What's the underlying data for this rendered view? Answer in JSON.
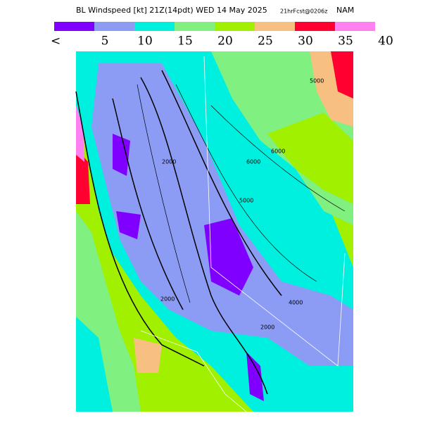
{
  "header": {
    "title": "BL Windspeed [kt] 21Z(14pdt) WED 14 May 2025",
    "forecast": "21hrFcst@0206z",
    "model": "NAM"
  },
  "legend": {
    "colors": [
      "#8000ff",
      "#8c9cf5",
      "#00f0e0",
      "#80f080",
      "#a0f000",
      "#f8c080",
      "#ff0030",
      "#ff80f0"
    ],
    "labels": [
      "<",
      5,
      10,
      15,
      20,
      25,
      30,
      35,
      40
    ]
  },
  "map": {
    "contour_labels": [
      "5000",
      "2000",
      "6000",
      "5000",
      "6000",
      "2000",
      "4000",
      "2000"
    ]
  }
}
